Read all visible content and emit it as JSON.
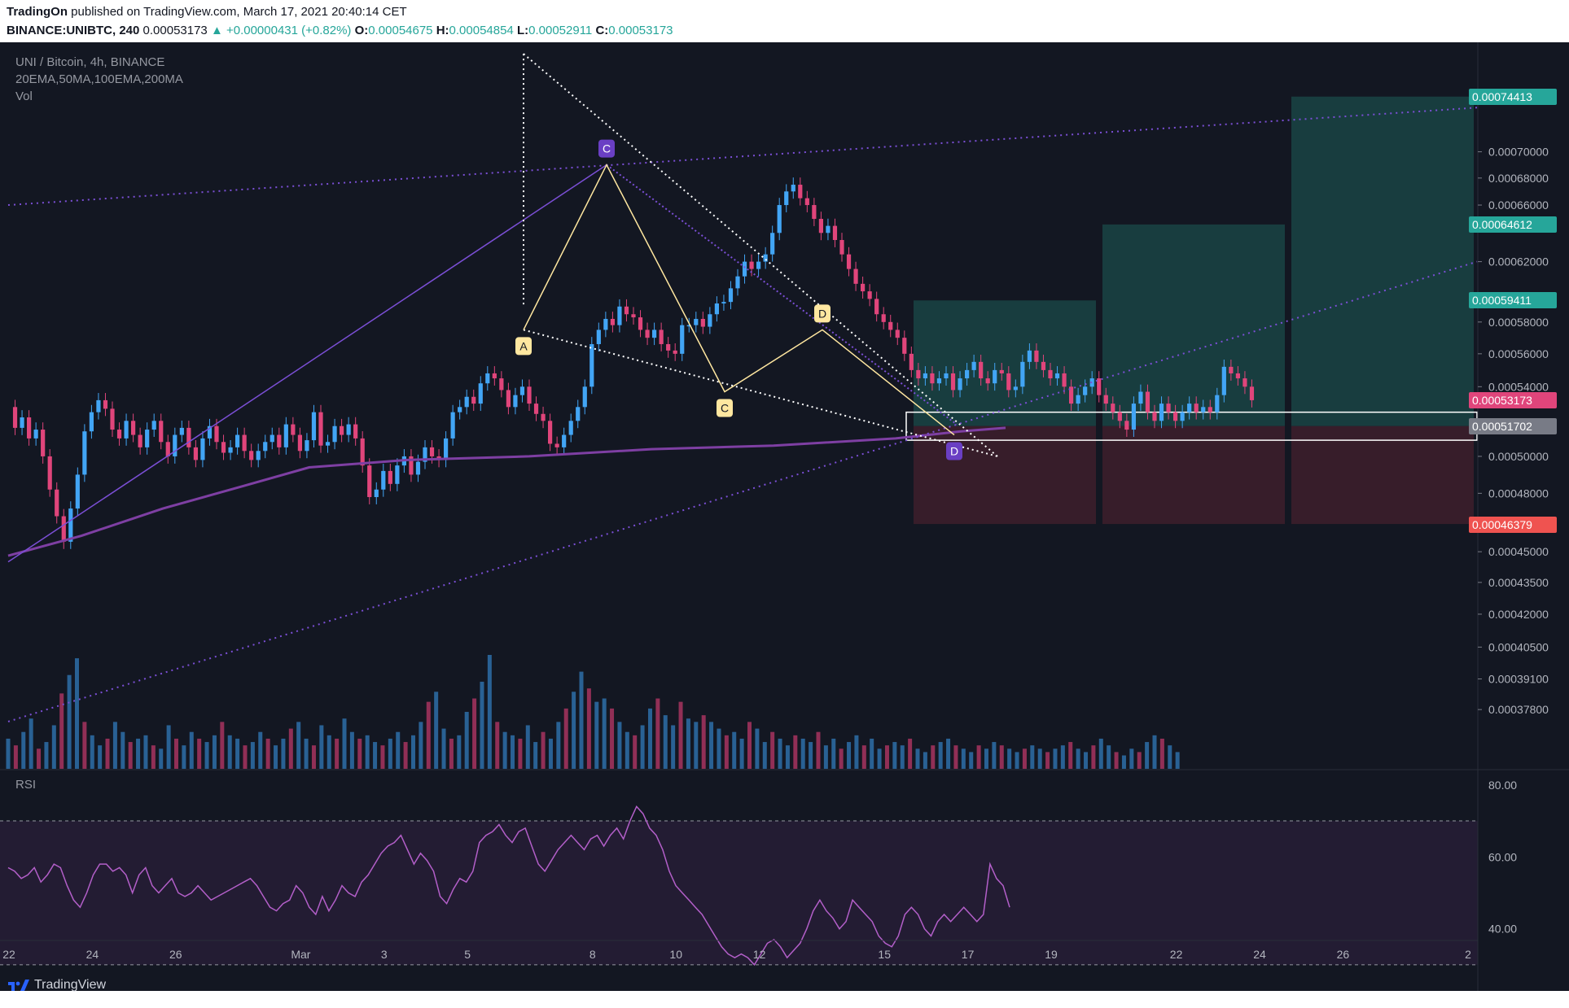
{
  "header": {
    "publisher": "TradingOn",
    "published_text": "published on TradingView.com, March 17, 2021 20:40:14 CET",
    "symbol": "BINANCE:UNIBTC, 240",
    "last": "0.00053173",
    "change": "▲ +0.00000431 (+0.82%)",
    "o_label": "O:",
    "o_value": "0.00054675",
    "h_label": "H:",
    "h_value": "0.00054854",
    "l_label": "L:",
    "l_value": "0.00052911",
    "c_label": "C:",
    "c_value": "0.00053173"
  },
  "legend": {
    "title": "UNI / Bitcoin, 4h, BINANCE",
    "indicators": "20EMA,50MA,100EMA,200MA",
    "volume": "Vol"
  },
  "rsi": {
    "label": "RSI",
    "levels": [
      80.0,
      60.0,
      40.0
    ],
    "level_labels": [
      "80.00",
      "60.00",
      "40.00"
    ],
    "upper_band": 70,
    "lower_band": 30
  },
  "footer": {
    "brand": "TradingView"
  },
  "colors": {
    "background": "#131722",
    "up": "#42a5f5",
    "down": "#e0457b",
    "ma": "#7e3fa3",
    "trend": "#7b4fd6",
    "pattern": "#ffe7a0",
    "target_zone": "#1b4b4a",
    "stop_zone": "#3e1f2b",
    "rsi_line": "#b35fc9"
  },
  "chart_data": {
    "type": "candlestick",
    "symbol": "UNI / Bitcoin",
    "interval": "4h",
    "exchange": "BINANCE",
    "y_axis": {
      "scale": "log",
      "ticks": [
        "0.00070000",
        "0.00068000",
        "0.00066000",
        "0.00062000",
        "0.00058000",
        "0.00056000",
        "0.00054000",
        "0.00050000",
        "0.00048000",
        "0.00045000",
        "0.00043500",
        "0.00042000",
        "0.00040500",
        "0.00039100",
        "0.00037800"
      ]
    },
    "x_axis": {
      "ticks": [
        "22",
        "24",
        "26",
        "Mar",
        "3",
        "5",
        "8",
        "10",
        "12",
        "15",
        "17",
        "19",
        "22",
        "24",
        "26",
        "2"
      ]
    },
    "price_labels": [
      {
        "value": "0.00074413",
        "kind": "target"
      },
      {
        "value": "0.00064612",
        "kind": "target"
      },
      {
        "value": "0.00059411",
        "kind": "target"
      },
      {
        "value": "0.00053173",
        "kind": "last"
      },
      {
        "value": "0.00051702",
        "kind": "entry"
      },
      {
        "value": "0.00046379",
        "kind": "stop"
      }
    ],
    "pattern_points": [
      {
        "label": "A",
        "date": "Mar 6",
        "price": 0.000575
      },
      {
        "label": "C",
        "date": "Mar 8",
        "price": 0.00069
      },
      {
        "label": "C",
        "date": "Mar 11",
        "price": 0.000537
      },
      {
        "label": "D",
        "date": "Mar 13",
        "price": 0.000575
      },
      {
        "label": "D",
        "date": "Mar 16",
        "price": 0.000512
      }
    ],
    "close_series": [
      0.000528,
      0.000516,
      0.000522,
      0.00051,
      0.000515,
      0.0005,
      0.000482,
      0.000468,
      0.000455,
      0.000472,
      0.00049,
      0.000514,
      0.000525,
      0.000532,
      0.000527,
      0.000515,
      0.00051,
      0.00052,
      0.000512,
      0.000505,
      0.000515,
      0.00052,
      0.000508,
      0.0005,
      0.000512,
      0.000516,
      0.000505,
      0.000498,
      0.00051,
      0.000517,
      0.000508,
      0.000502,
      0.000505,
      0.000512,
      0.000503,
      0.000498,
      0.000503,
      0.000508,
      0.000512,
      0.000505,
      0.000518,
      0.000512,
      0.000503,
      0.000509,
      0.000525,
      0.000506,
      0.000508,
      0.000517,
      0.000512,
      0.000518,
      0.00051,
      0.000495,
      0.000478,
      0.000482,
      0.000492,
      0.000485,
      0.000495,
      0.0005,
      0.00049,
      0.000497,
      0.000505,
      0.0005,
      0.000498,
      0.00051,
      0.000525,
      0.000528,
      0.000534,
      0.00053,
      0.000542,
      0.000548,
      0.000545,
      0.000538,
      0.000528,
      0.000535,
      0.00054,
      0.00053,
      0.000524,
      0.00052,
      0.000507,
      0.000505,
      0.000512,
      0.00052,
      0.000528,
      0.00054,
      0.000566,
      0.000575,
      0.000582,
      0.000578,
      0.00059,
      0.000585,
      0.000583,
      0.000575,
      0.00057,
      0.000575,
      0.000566,
      0.000562,
      0.00056,
      0.000578,
      0.000578,
      0.000582,
      0.000577,
      0.000585,
      0.000592,
      0.000593,
      0.000602,
      0.00061,
      0.00062,
      0.000615,
      0.00062,
      0.000625,
      0.00064,
      0.00066,
      0.00067,
      0.000675,
      0.000665,
      0.00066,
      0.00065,
      0.00064,
      0.000645,
      0.000635,
      0.000625,
      0.000615,
      0.000605,
      0.0006,
      0.000595,
      0.000585,
      0.00058,
      0.000575,
      0.00057,
      0.00056,
      0.00055,
      0.000545,
      0.000548,
      0.000542,
      0.000545,
      0.000548,
      0.000538,
      0.000545,
      0.00055,
      0.000555,
      0.000545,
      0.000542,
      0.00055,
      0.000548,
      0.000538,
      0.00054,
      0.000555,
      0.000562,
      0.000555,
      0.00055,
      0.000545,
      0.000548,
      0.00054,
      0.00053,
      0.000535,
      0.00054,
      0.000545,
      0.000535,
      0.00053,
      0.000525,
      0.00052,
      0.000515,
      0.00053,
      0.000537,
      0.000525,
      0.00052,
      0.00053,
      0.000525,
      0.00052,
      0.000525,
      0.00053,
      0.000525,
      0.000528,
      0.000525,
      0.000535,
      0.000552,
      0.000548,
      0.000545,
      0.00054,
      0.000532
    ],
    "rsi_series": [
      57,
      56,
      54,
      55,
      57,
      53,
      55,
      58,
      57,
      52,
      48,
      46,
      50,
      55,
      58,
      58,
      56,
      57,
      55,
      50,
      55,
      57,
      52,
      50,
      52,
      54,
      50,
      49,
      50,
      52,
      50,
      48,
      49,
      50,
      51,
      52,
      53,
      54,
      52,
      49,
      46,
      45,
      47,
      48,
      52,
      50,
      46,
      44,
      49,
      45,
      48,
      52,
      50,
      49,
      53,
      55,
      58,
      61,
      63,
      64,
      66,
      62,
      58,
      61,
      59,
      56,
      49,
      47,
      51,
      54,
      53,
      56,
      64,
      66,
      67,
      69,
      66,
      64,
      67,
      68,
      63,
      58,
      56,
      59,
      62,
      64,
      66,
      64,
      62,
      65,
      66,
      63,
      66,
      68,
      65,
      70,
      74,
      72,
      68,
      66,
      62,
      56,
      52,
      50,
      48,
      46,
      44,
      41,
      38,
      35,
      33,
      32,
      33,
      32,
      30,
      33,
      36,
      37,
      35,
      32,
      34,
      36,
      40,
      45,
      48,
      45,
      43,
      40,
      42,
      48,
      46,
      44,
      42,
      38,
      36,
      35,
      38,
      44,
      46,
      44,
      40,
      38,
      42,
      44,
      42,
      44,
      46,
      44,
      42,
      44,
      58,
      54,
      52,
      46
    ],
    "volume_series": [
      18,
      14,
      22,
      30,
      12,
      16,
      26,
      45,
      56,
      66,
      28,
      20,
      14,
      18,
      28,
      22,
      16,
      18,
      20,
      14,
      12,
      26,
      18,
      14,
      22,
      18,
      16,
      20,
      28,
      20,
      18,
      14,
      16,
      22,
      18,
      14,
      18,
      24,
      28,
      18,
      14,
      26,
      20,
      18,
      30,
      22,
      18,
      20,
      16,
      14,
      18,
      22,
      16,
      20,
      28,
      40,
      46,
      24,
      18,
      20,
      34,
      42,
      52,
      68,
      28,
      22,
      20,
      18,
      26,
      16,
      22,
      18,
      28,
      36,
      46,
      58,
      48,
      40,
      42,
      36,
      28,
      22,
      20,
      26,
      36,
      42,
      32,
      26,
      40,
      30,
      28,
      32,
      28,
      24,
      20,
      22,
      18,
      28,
      24,
      16,
      22,
      18,
      14,
      20,
      18,
      16,
      22,
      14,
      18,
      12,
      16,
      20,
      14,
      18,
      12,
      14,
      16,
      14,
      18,
      12,
      10,
      14,
      16,
      18,
      14,
      12,
      10,
      14,
      12,
      16,
      14,
      12,
      10,
      12,
      14,
      12,
      10,
      12,
      14,
      16,
      12,
      10,
      14,
      18,
      14,
      10,
      8,
      12,
      10,
      16,
      20,
      18,
      14,
      10
    ]
  }
}
